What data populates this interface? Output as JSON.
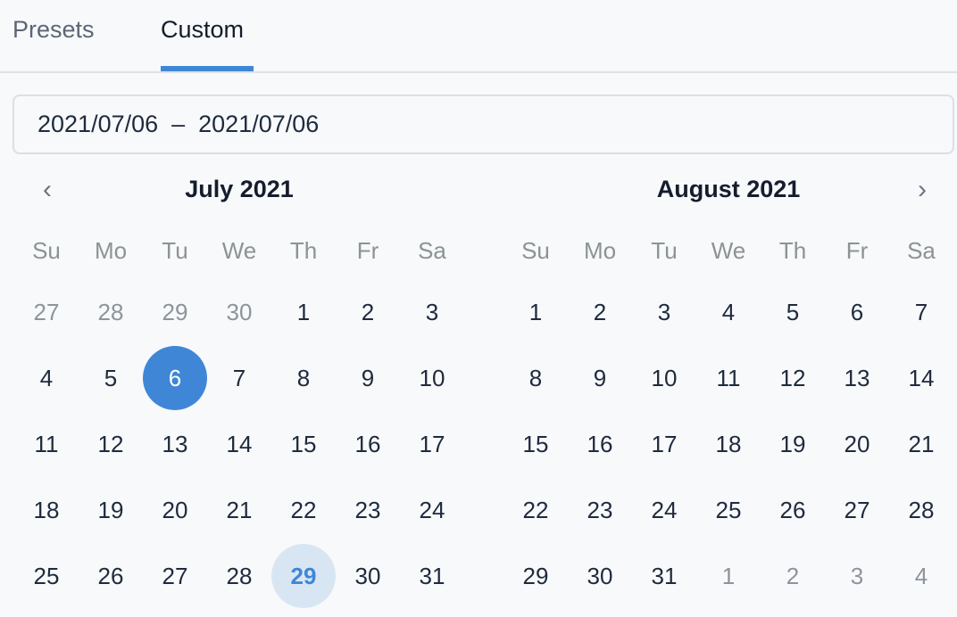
{
  "tabs": [
    {
      "label": "Presets",
      "active": false
    },
    {
      "label": "Custom",
      "active": true
    }
  ],
  "range_input": {
    "value": "2021/07/06  –  2021/07/06"
  },
  "colors": {
    "accent": "#3f87d6",
    "today_bg": "#d8e6f4"
  },
  "nav": {
    "prev_icon": "chevron-left-icon",
    "next_icon": "chevron-right-icon",
    "prev": "‹",
    "next": "›"
  },
  "weekdays": [
    "Su",
    "Mo",
    "Tu",
    "We",
    "Th",
    "Fr",
    "Sa"
  ],
  "months": [
    {
      "title": "July 2021",
      "weeks": [
        [
          {
            "d": "27",
            "out": true
          },
          {
            "d": "28",
            "out": true
          },
          {
            "d": "29",
            "out": true
          },
          {
            "d": "30",
            "out": true
          },
          {
            "d": "1"
          },
          {
            "d": "2"
          },
          {
            "d": "3"
          }
        ],
        [
          {
            "d": "4"
          },
          {
            "d": "5"
          },
          {
            "d": "6",
            "selected": true
          },
          {
            "d": "7"
          },
          {
            "d": "8"
          },
          {
            "d": "9"
          },
          {
            "d": "10"
          }
        ],
        [
          {
            "d": "11"
          },
          {
            "d": "12"
          },
          {
            "d": "13"
          },
          {
            "d": "14"
          },
          {
            "d": "15"
          },
          {
            "d": "16"
          },
          {
            "d": "17"
          }
        ],
        [
          {
            "d": "18"
          },
          {
            "d": "19"
          },
          {
            "d": "20"
          },
          {
            "d": "21"
          },
          {
            "d": "22"
          },
          {
            "d": "23"
          },
          {
            "d": "24"
          }
        ],
        [
          {
            "d": "25"
          },
          {
            "d": "26"
          },
          {
            "d": "27"
          },
          {
            "d": "28"
          },
          {
            "d": "29",
            "today": true
          },
          {
            "d": "30"
          },
          {
            "d": "31"
          }
        ]
      ]
    },
    {
      "title": "August 2021",
      "weeks": [
        [
          {
            "d": "1"
          },
          {
            "d": "2"
          },
          {
            "d": "3"
          },
          {
            "d": "4"
          },
          {
            "d": "5"
          },
          {
            "d": "6"
          },
          {
            "d": "7"
          }
        ],
        [
          {
            "d": "8"
          },
          {
            "d": "9"
          },
          {
            "d": "10"
          },
          {
            "d": "11"
          },
          {
            "d": "12"
          },
          {
            "d": "13"
          },
          {
            "d": "14"
          }
        ],
        [
          {
            "d": "15"
          },
          {
            "d": "16"
          },
          {
            "d": "17"
          },
          {
            "d": "18"
          },
          {
            "d": "19"
          },
          {
            "d": "20"
          },
          {
            "d": "21"
          }
        ],
        [
          {
            "d": "22"
          },
          {
            "d": "23"
          },
          {
            "d": "24"
          },
          {
            "d": "25"
          },
          {
            "d": "26"
          },
          {
            "d": "27"
          },
          {
            "d": "28"
          }
        ],
        [
          {
            "d": "29"
          },
          {
            "d": "30"
          },
          {
            "d": "31"
          },
          {
            "d": "1",
            "out": true
          },
          {
            "d": "2",
            "out": true
          },
          {
            "d": "3",
            "out": true
          },
          {
            "d": "4",
            "out": true
          }
        ]
      ]
    }
  ]
}
